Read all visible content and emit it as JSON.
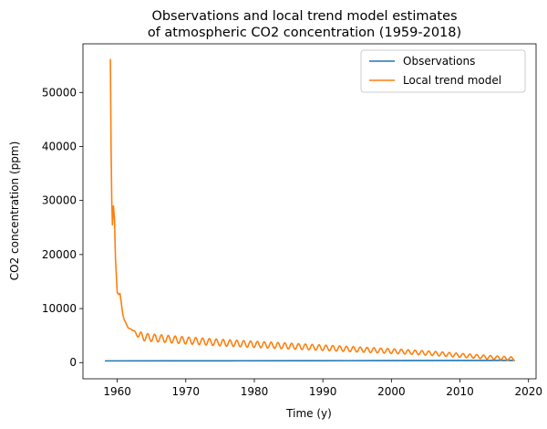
{
  "chart_data": {
    "type": "line",
    "title_lines": [
      "Observations and local trend model estimates",
      "of atmospheric CO2 concentration (1959-2018)"
    ],
    "xlabel": "Time (y)",
    "ylabel": "CO2 concentration (ppm)",
    "xlim": [
      1955.0,
      2021.1
    ],
    "ylim": [
      -3000,
      59000
    ],
    "x_ticks": [
      1960,
      1970,
      1980,
      1990,
      2000,
      2010,
      2020
    ],
    "y_ticks": [
      0,
      10000,
      20000,
      30000,
      40000,
      50000
    ],
    "grid": false,
    "legend_position": "top-right",
    "series": [
      {
        "name": "Observations",
        "color": "#1f77b4",
        "x": [
          1958.2,
          1968,
          1978,
          1988,
          1998,
          2008,
          2018
        ],
        "y": [
          315,
          323,
          335,
          350,
          367,
          385,
          408
        ]
      },
      {
        "name": "Local trend model",
        "color": "#ff7f0e",
        "x": [
          1959.0,
          1959.1,
          1959.2,
          1959.3,
          1959.45,
          1959.6,
          1959.75,
          1960.0,
          1960.2,
          1960.4,
          1960.6,
          1960.8,
          1961.0,
          1961.3,
          1961.6,
          1962.0,
          1962.4,
          1962.8,
          1963.2,
          1963.6,
          1964.0,
          1965.0,
          1966.0,
          1968.0,
          1970.0,
          1972.0,
          1975.0,
          1978.0,
          1982.0,
          1986.0,
          1990.0,
          1994.0,
          1998.0,
          2002.0,
          2006.0,
          2010.0,
          2014.0,
          2018.0
        ],
        "y": [
          56200,
          40000,
          30000,
          25500,
          29000,
          26500,
          19000,
          13000,
          12600,
          12800,
          11000,
          9000,
          8000,
          7200,
          6400,
          6200,
          5800,
          5400,
          5000,
          4900,
          4700,
          4600,
          4500,
          4300,
          4100,
          3950,
          3700,
          3500,
          3250,
          3000,
          2750,
          2500,
          2250,
          2000,
          1700,
          1350,
          1000,
          700
        ],
        "oscillation_amplitude": [
          700,
          300
        ]
      }
    ]
  }
}
